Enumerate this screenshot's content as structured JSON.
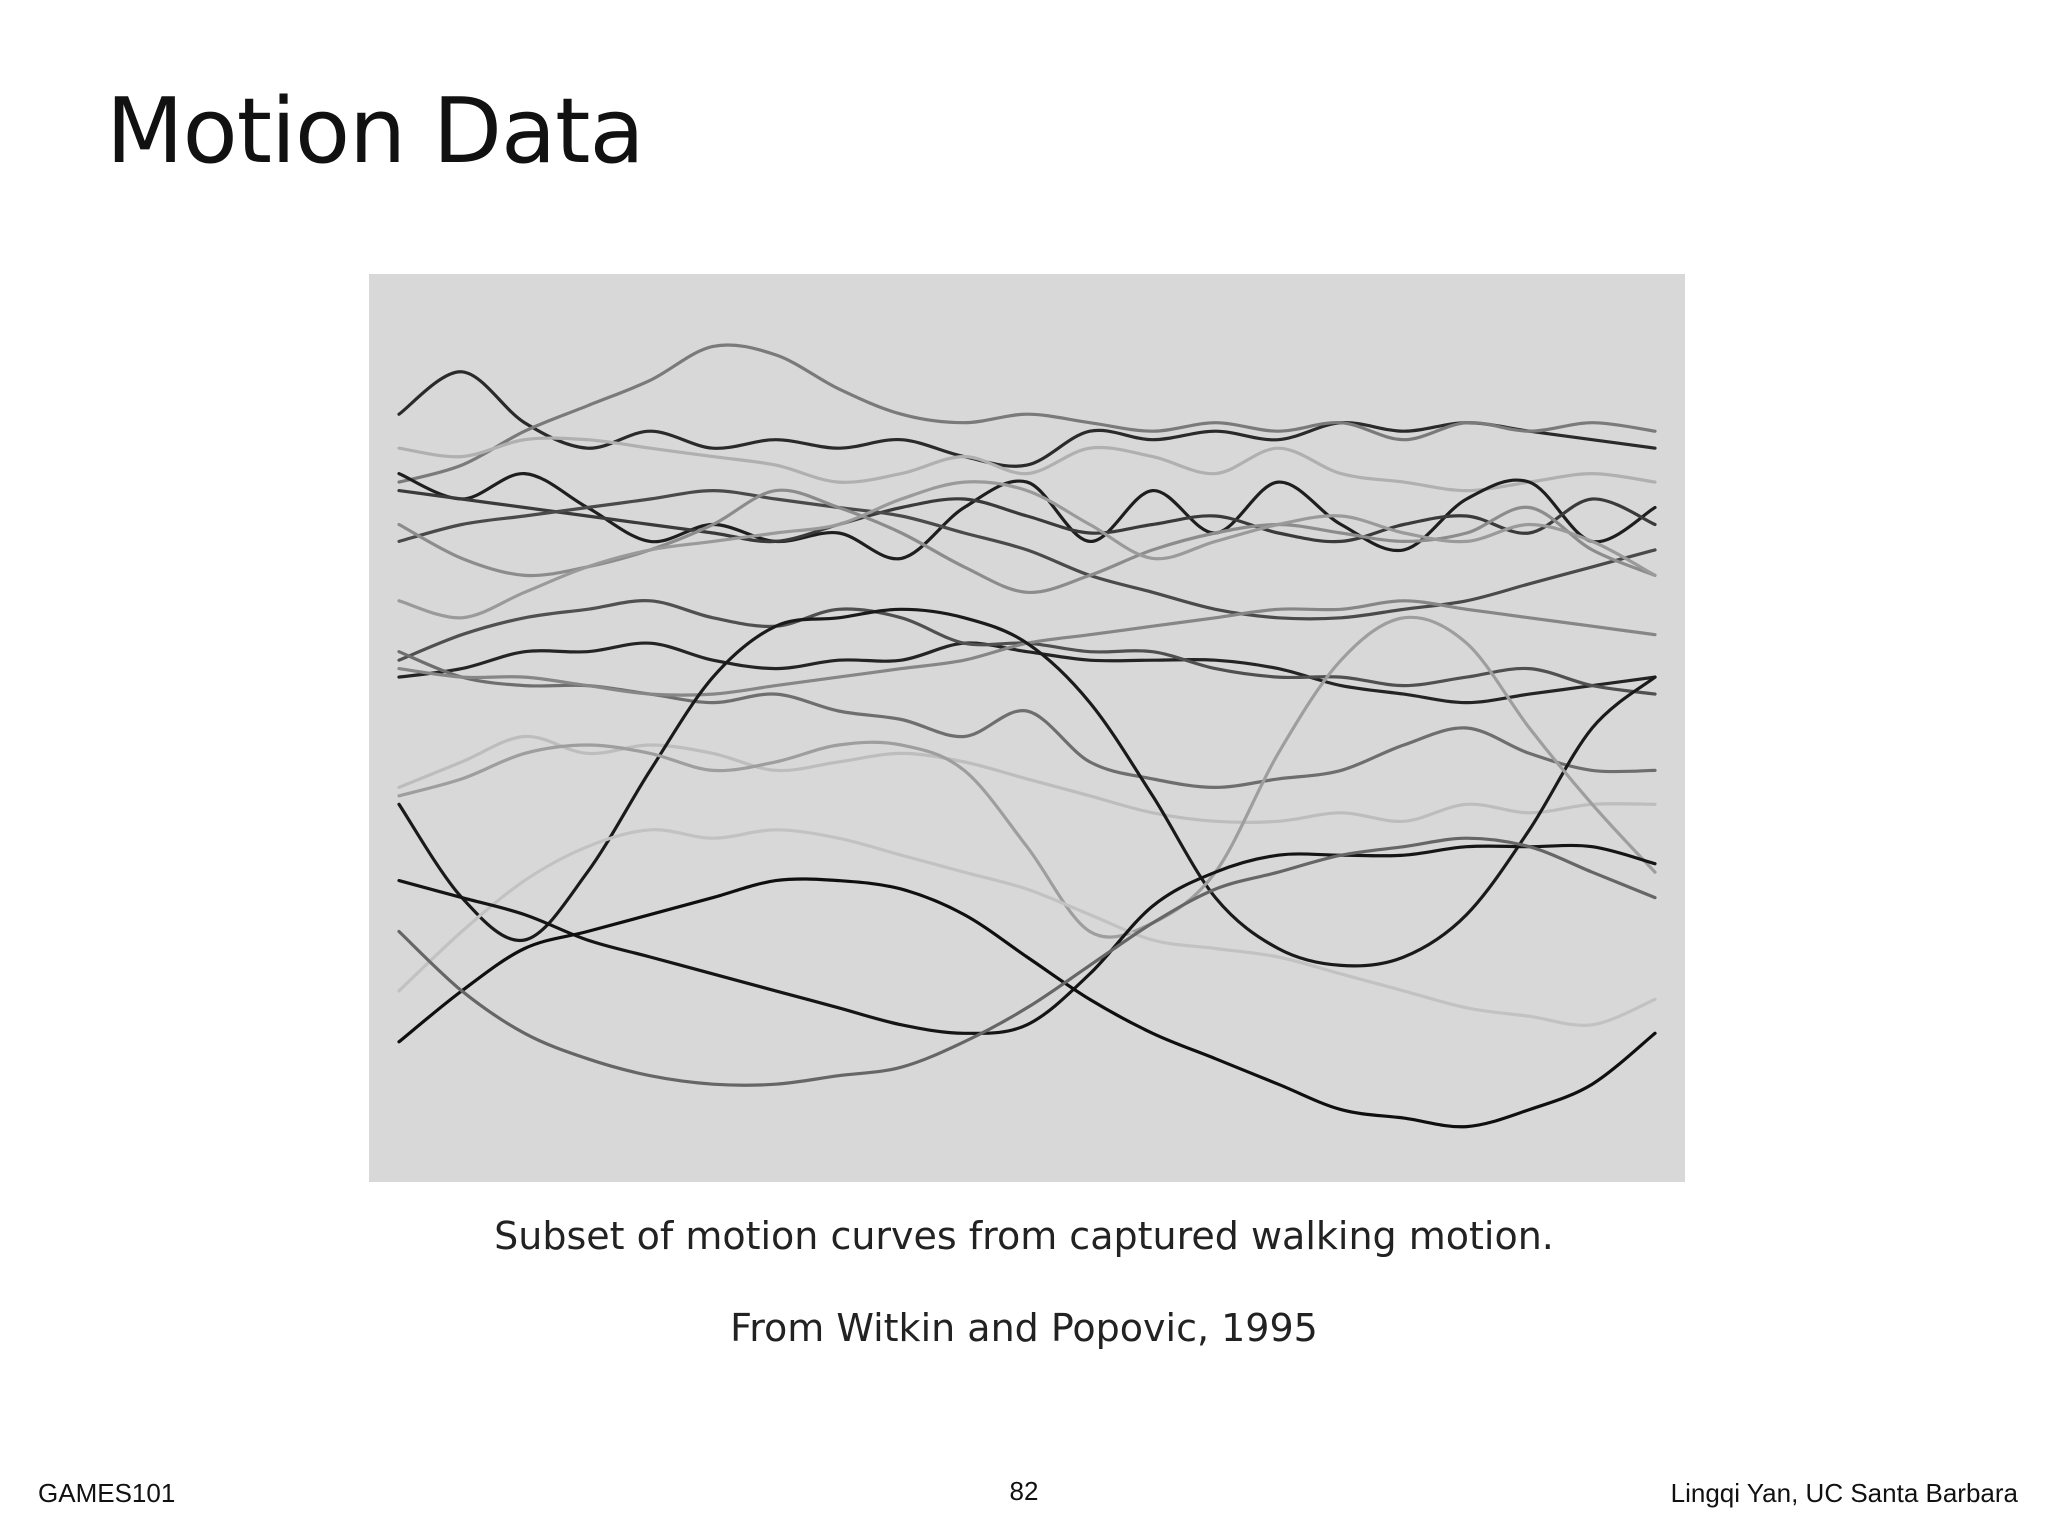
{
  "slide": {
    "title": "Motion Data",
    "caption": "Subset of motion curves from captured walking motion.",
    "citation": "From Witkin and Popovic, 1995",
    "footer_left": "GAMES101",
    "page_number": "82",
    "footer_right": "Lingqi Yan, UC Santa Barbara"
  },
  "chart_data": {
    "type": "line",
    "background": "#d8d8d8",
    "grid": false,
    "axes_visible": false,
    "xlim": [
      0,
      1
    ],
    "ylim": [
      0,
      1
    ],
    "x": [
      0,
      0.05,
      0.1,
      0.15,
      0.2,
      0.25,
      0.3,
      0.35,
      0.4,
      0.45,
      0.5,
      0.55,
      0.6,
      0.65,
      0.7,
      0.75,
      0.8,
      0.85,
      0.9,
      0.95,
      1.0
    ],
    "series": [
      {
        "color": "#2a2a2a",
        "values": [
          0.87,
          0.92,
          0.86,
          0.83,
          0.85,
          0.83,
          0.84,
          0.83,
          0.84,
          0.82,
          0.81,
          0.85,
          0.84,
          0.85,
          0.84,
          0.86,
          0.85,
          0.86,
          0.85,
          0.84,
          0.83
        ]
      },
      {
        "color": "#7a7a7a",
        "values": [
          0.79,
          0.81,
          0.85,
          0.88,
          0.91,
          0.95,
          0.94,
          0.9,
          0.87,
          0.86,
          0.87,
          0.86,
          0.85,
          0.86,
          0.85,
          0.86,
          0.84,
          0.86,
          0.85,
          0.86,
          0.85
        ]
      },
      {
        "color": "#b0b0b0",
        "values": [
          0.83,
          0.82,
          0.84,
          0.84,
          0.83,
          0.82,
          0.81,
          0.79,
          0.8,
          0.82,
          0.8,
          0.83,
          0.82,
          0.8,
          0.83,
          0.8,
          0.79,
          0.78,
          0.79,
          0.8,
          0.79
        ]
      },
      {
        "color": "#1e1e1e",
        "values": [
          0.8,
          0.77,
          0.8,
          0.76,
          0.72,
          0.74,
          0.72,
          0.73,
          0.7,
          0.76,
          0.79,
          0.72,
          0.78,
          0.73,
          0.79,
          0.74,
          0.71,
          0.77,
          0.79,
          0.72,
          0.76
        ]
      },
      {
        "color": "#3a3a3a",
        "values": [
          0.78,
          0.77,
          0.76,
          0.75,
          0.74,
          0.73,
          0.72,
          0.74,
          0.76,
          0.77,
          0.75,
          0.73,
          0.74,
          0.75,
          0.73,
          0.72,
          0.74,
          0.75,
          0.73,
          0.77,
          0.74
        ]
      },
      {
        "color": "#4a4a4a",
        "values": [
          0.72,
          0.74,
          0.75,
          0.76,
          0.77,
          0.78,
          0.77,
          0.76,
          0.75,
          0.73,
          0.71,
          0.68,
          0.66,
          0.64,
          0.63,
          0.63,
          0.64,
          0.65,
          0.67,
          0.69,
          0.71
        ]
      },
      {
        "color": "#8c8c8c",
        "values": [
          0.74,
          0.7,
          0.68,
          0.69,
          0.71,
          0.74,
          0.78,
          0.76,
          0.73,
          0.69,
          0.66,
          0.68,
          0.71,
          0.73,
          0.74,
          0.73,
          0.72,
          0.73,
          0.76,
          0.71,
          0.68
        ]
      },
      {
        "color": "#9a9a9a",
        "values": [
          0.65,
          0.63,
          0.66,
          0.69,
          0.71,
          0.72,
          0.73,
          0.74,
          0.77,
          0.79,
          0.78,
          0.74,
          0.7,
          0.72,
          0.74,
          0.75,
          0.73,
          0.72,
          0.74,
          0.72,
          0.68
        ]
      },
      {
        "color": "#242424",
        "values": [
          0.56,
          0.57,
          0.59,
          0.59,
          0.6,
          0.58,
          0.57,
          0.58,
          0.58,
          0.6,
          0.59,
          0.58,
          0.58,
          0.58,
          0.57,
          0.55,
          0.54,
          0.53,
          0.54,
          0.55,
          0.56
        ]
      },
      {
        "color": "#505050",
        "values": [
          0.58,
          0.61,
          0.63,
          0.64,
          0.65,
          0.63,
          0.62,
          0.64,
          0.63,
          0.6,
          0.6,
          0.59,
          0.59,
          0.57,
          0.56,
          0.56,
          0.55,
          0.56,
          0.57,
          0.55,
          0.54
        ]
      },
      {
        "color": "#6e6e6e",
        "values": [
          0.59,
          0.56,
          0.55,
          0.55,
          0.54,
          0.53,
          0.54,
          0.52,
          0.51,
          0.49,
          0.52,
          0.46,
          0.44,
          0.43,
          0.44,
          0.45,
          0.48,
          0.5,
          0.47,
          0.45,
          0.45
        ]
      },
      {
        "color": "#868686",
        "values": [
          0.57,
          0.56,
          0.56,
          0.55,
          0.54,
          0.54,
          0.55,
          0.56,
          0.57,
          0.58,
          0.6,
          0.61,
          0.62,
          0.63,
          0.64,
          0.64,
          0.65,
          0.64,
          0.63,
          0.62,
          0.61
        ]
      },
      {
        "color": "#bdbdbd",
        "values": [
          0.43,
          0.46,
          0.49,
          0.47,
          0.48,
          0.47,
          0.45,
          0.46,
          0.47,
          0.46,
          0.44,
          0.42,
          0.4,
          0.39,
          0.39,
          0.4,
          0.39,
          0.41,
          0.4,
          0.41,
          0.41
        ]
      },
      {
        "color": "#1a1a1a",
        "values": [
          0.41,
          0.3,
          0.25,
          0.33,
          0.45,
          0.56,
          0.62,
          0.63,
          0.64,
          0.63,
          0.6,
          0.53,
          0.42,
          0.3,
          0.24,
          0.22,
          0.23,
          0.28,
          0.38,
          0.5,
          0.56
        ]
      },
      {
        "color": "#9e9e9e",
        "values": [
          0.42,
          0.44,
          0.47,
          0.48,
          0.47,
          0.45,
          0.46,
          0.48,
          0.48,
          0.45,
          0.36,
          0.26,
          0.27,
          0.33,
          0.47,
          0.58,
          0.63,
          0.6,
          0.5,
          0.41,
          0.33
        ]
      },
      {
        "color": "#c2c2c2",
        "values": [
          0.19,
          0.26,
          0.32,
          0.36,
          0.38,
          0.37,
          0.38,
          0.37,
          0.35,
          0.33,
          0.31,
          0.28,
          0.25,
          0.24,
          0.23,
          0.21,
          0.19,
          0.17,
          0.16,
          0.15,
          0.18
        ]
      },
      {
        "color": "#151515",
        "values": [
          0.32,
          0.3,
          0.28,
          0.25,
          0.23,
          0.21,
          0.19,
          0.17,
          0.15,
          0.14,
          0.15,
          0.21,
          0.29,
          0.33,
          0.35,
          0.35,
          0.35,
          0.36,
          0.36,
          0.36,
          0.34
        ]
      },
      {
        "color": "#0f0f0f",
        "values": [
          0.13,
          0.19,
          0.24,
          0.26,
          0.28,
          0.3,
          0.32,
          0.32,
          0.31,
          0.28,
          0.23,
          0.18,
          0.14,
          0.11,
          0.08,
          0.05,
          0.04,
          0.03,
          0.05,
          0.08,
          0.14
        ]
      },
      {
        "color": "#666666",
        "values": [
          0.26,
          0.19,
          0.14,
          0.11,
          0.09,
          0.08,
          0.08,
          0.09,
          0.1,
          0.13,
          0.17,
          0.22,
          0.27,
          0.31,
          0.33,
          0.35,
          0.36,
          0.37,
          0.36,
          0.33,
          0.3
        ]
      }
    ]
  }
}
